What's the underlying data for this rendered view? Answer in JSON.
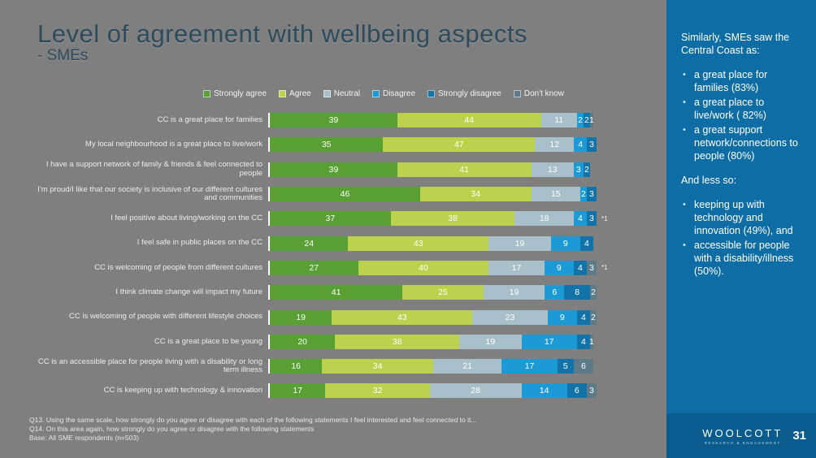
{
  "title": "Level of agreement with wellbeing aspects",
  "subtitle": "- SMEs",
  "page_number": "31",
  "logo": {
    "name": "WOOLCOTT",
    "tagline": "RESEARCH & ENGAGEMENT"
  },
  "colors": {
    "background": "#7f7f7f",
    "sidebar": "#0e6da4",
    "sidebar_footer": "#0a5c8e",
    "title_text": "#2d4b5c",
    "strongly_agree": "#58a033",
    "agree": "#bcd24f",
    "neutral": "#a9c0cb",
    "disagree": "#1c9ad6",
    "strongly_disagree": "#1173a8",
    "dont_know": "#5d7a88"
  },
  "chart_data": {
    "type": "bar",
    "orientation": "horizontal-stacked",
    "unit": "%",
    "xlim": [
      0,
      100
    ],
    "legend_position": "top",
    "grid": false,
    "series_names": [
      "Strongly agree",
      "Agree",
      "Neutral",
      "Disagree",
      "Strongly disagree",
      "Don't know"
    ],
    "series_colors": [
      "#58a033",
      "#bcd24f",
      "#a9c0cb",
      "#1c9ad6",
      "#1173a8",
      "#5d7a88"
    ],
    "rows": [
      {
        "label": "CC is a great place for families",
        "values": [
          39,
          44,
          11,
          2,
          2,
          1
        ],
        "note": ""
      },
      {
        "label": "My local neighbourhood is a great place to live/work",
        "values": [
          35,
          47,
          12,
          4,
          3,
          0
        ],
        "note": ""
      },
      {
        "label": "I have a support network of family & friends & feel connected to people",
        "values": [
          39,
          41,
          13,
          3,
          2,
          0
        ],
        "note": ""
      },
      {
        "label": "I'm proud/I like that our society is inclusive of our different cultures and communities",
        "values": [
          46,
          34,
          15,
          2,
          3,
          0
        ],
        "note": ""
      },
      {
        "label": "I feel positive about living/working on the CC",
        "values": [
          37,
          38,
          18,
          4,
          3,
          0
        ],
        "note": "*1"
      },
      {
        "label": "I feel safe in public places on the CC",
        "values": [
          24,
          43,
          19,
          9,
          4,
          0
        ],
        "note": ""
      },
      {
        "label": "CC is welcoming of people from different cultures",
        "values": [
          27,
          40,
          17,
          9,
          4,
          3
        ],
        "note": "*1"
      },
      {
        "label": "I think climate change will impact my future",
        "values": [
          41,
          25,
          19,
          6,
          8,
          2
        ],
        "note": ""
      },
      {
        "label": "CC is welcoming of people with different lifestyle choices",
        "values": [
          19,
          43,
          23,
          9,
          4,
          2
        ],
        "note": ""
      },
      {
        "label": "CC is a great place to be young",
        "values": [
          20,
          38,
          19,
          17,
          4,
          1
        ],
        "note": ""
      },
      {
        "label": "CC is an accessible place for people living with a disability or long term illness",
        "values": [
          16,
          34,
          21,
          17,
          5,
          6
        ],
        "note": ""
      },
      {
        "label": "CC is keeping up with technology & innovation",
        "values": [
          17,
          32,
          28,
          14,
          6,
          3
        ],
        "note": ""
      }
    ]
  },
  "footnotes": [
    "Q13. Using the same scale, how strongly do you agree or disagree with each of the following statements I feel interested and feel connected to it...",
    "Q14. On this area again, how strongly do you agree or disagree with the following statements",
    "Base: All SME respondents (n=503)"
  ],
  "sidebar": {
    "intro": "Similarly, SMEs saw the Central Coast as:",
    "bullets": [
      "a great place for families (83%)",
      "a great place to live/work ( 82%)",
      "a great support network/connections to people (80%)"
    ],
    "less_intro": "And less so:",
    "less_bullets": [
      "keeping up with technology and innovation (49%), and",
      "accessible for people with a disability/illness (50%)."
    ]
  }
}
